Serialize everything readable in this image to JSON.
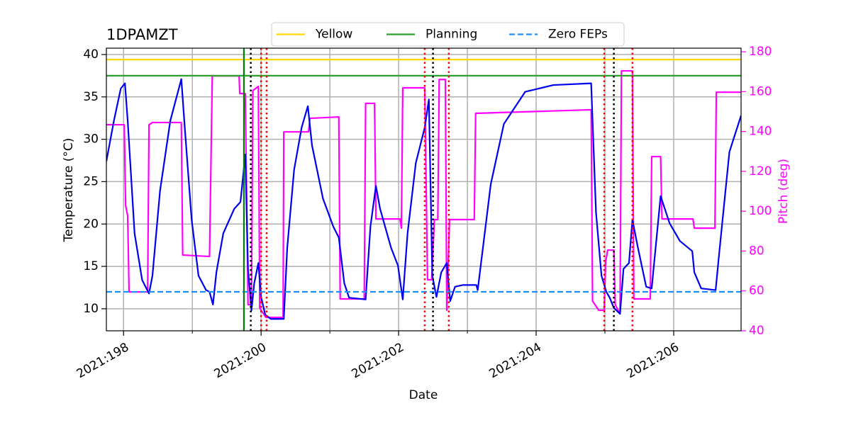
{
  "chart_data": {
    "type": "line",
    "title": "1DPAMZT",
    "xlabel": "Date",
    "ylabel": "Temperature (°C)",
    "y2label": "Pitch (deg)",
    "xlim": [
      197.75,
      206.98
    ],
    "xticks": [
      {
        "value": 198,
        "label": "2021:198"
      },
      {
        "value": 200,
        "label": "2021:200"
      },
      {
        "value": 202,
        "label": "2021:202"
      },
      {
        "value": 204,
        "label": "2021:204"
      },
      {
        "value": 206,
        "label": "2021:206"
      }
    ],
    "xminor_ticks": [
      199,
      201,
      203,
      205
    ],
    "ylim": [
      7.4,
      40.75
    ],
    "yticks": [
      10,
      15,
      20,
      25,
      30,
      35,
      40
    ],
    "y2lim": [
      40,
      181.8
    ],
    "y2ticks": [
      40,
      60,
      80,
      100,
      120,
      140,
      160,
      180
    ],
    "y2color": "#ff00ff",
    "grid": true,
    "legend": "top",
    "hlines": [
      {
        "name": "Yellow",
        "value": 39.4,
        "color": "#ffd700",
        "style": "solid"
      },
      {
        "name": "Planning",
        "value": 37.5,
        "color": "#2ca02c",
        "style": "solid"
      },
      {
        "name": "Zero FEPs",
        "value": 12.0,
        "color": "#1e90ff",
        "style": "dashed"
      }
    ],
    "vlines": [
      {
        "x": 199.75,
        "color": "#008000",
        "style": "solid"
      },
      {
        "x": 199.85,
        "color": "#000000",
        "style": "dotted"
      },
      {
        "x": 202.5,
        "color": "#000000",
        "style": "dotted"
      },
      {
        "x": 205.13,
        "color": "#000000",
        "style": "dotted"
      },
      {
        "x": 200.0,
        "color": "#ff0000",
        "style": "dotted"
      },
      {
        "x": 200.08,
        "color": "#ff0000",
        "style": "dotted"
      },
      {
        "x": 202.38,
        "color": "#ff0000",
        "style": "dotted"
      },
      {
        "x": 202.73,
        "color": "#ff0000",
        "style": "dotted"
      },
      {
        "x": 204.99,
        "color": "#ff0000",
        "style": "dotted"
      },
      {
        "x": 205.4,
        "color": "#ff0000",
        "style": "dotted"
      }
    ],
    "series": [
      {
        "color": "#ff00ff",
        "axis": "y2",
        "x": [
          197.75,
          198.01,
          198.03,
          198.06,
          198.08,
          198.35,
          198.37,
          198.42,
          198.84,
          198.86,
          199.25,
          199.27,
          199.29,
          199.68,
          199.69,
          199.77,
          199.81,
          199.86,
          199.88,
          199.96,
          199.98,
          200.07,
          200.32,
          200.33,
          200.69,
          200.71,
          201.13,
          201.15,
          201.5,
          201.52,
          201.65,
          201.67,
          202.02,
          202.04,
          202.06,
          202.38,
          202.42,
          202.48,
          202.52,
          202.57,
          202.59,
          202.68,
          202.7,
          202.74,
          203.1,
          203.12,
          204.8,
          204.82,
          204.91,
          204.99,
          205.01,
          205.04,
          205.13,
          205.15,
          205.22,
          205.24,
          205.4,
          205.42,
          205.66,
          205.68,
          205.81,
          205.83,
          206.28,
          206.3,
          206.6,
          206.62,
          206.98
        ],
        "values": [
          143.4,
          143.4,
          102.9,
          97.6,
          59.5,
          59.5,
          143.4,
          144.5,
          144.5,
          78.0,
          77.3,
          122.4,
          167.9,
          167.9,
          159.0,
          159.0,
          53.1,
          53.1,
          160.5,
          162.6,
          51.4,
          46.7,
          46.7,
          139.8,
          139.8,
          146.6,
          147.3,
          56.0,
          56.0,
          154.1,
          154.1,
          96.1,
          96.1,
          91.5,
          161.9,
          161.9,
          65.6,
          65.6,
          95.8,
          95.8,
          166.1,
          166.1,
          50.3,
          95.8,
          95.8,
          149.1,
          150.9,
          54.9,
          50.3,
          50.3,
          74.5,
          80.5,
          80.5,
          53.1,
          48.5,
          170.4,
          170.4,
          56.0,
          56.0,
          127.4,
          127.4,
          96.1,
          96.1,
          91.5,
          91.5,
          159.7,
          159.7
        ]
      },
      {
        "color": "#0000ee",
        "axis": "y",
        "x": [
          197.75,
          197.86,
          197.96,
          198.02,
          198.06,
          198.16,
          198.27,
          198.37,
          198.42,
          198.53,
          198.68,
          198.84,
          198.89,
          198.99,
          199.09,
          199.2,
          199.25,
          199.3,
          199.35,
          199.45,
          199.61,
          199.7,
          199.77,
          199.81,
          199.86,
          199.9,
          199.96,
          200.0,
          200.06,
          200.14,
          200.33,
          200.38,
          200.48,
          200.59,
          200.68,
          200.74,
          200.9,
          201.05,
          201.13,
          201.21,
          201.28,
          201.52,
          201.59,
          201.67,
          201.73,
          201.89,
          201.99,
          202.06,
          202.13,
          202.25,
          202.38,
          202.44,
          202.49,
          202.55,
          202.62,
          202.7,
          202.75,
          202.82,
          202.93,
          203.13,
          203.15,
          203.34,
          203.53,
          203.84,
          204.25,
          204.8,
          204.87,
          204.95,
          205.02,
          205.07,
          205.13,
          205.22,
          205.27,
          205.35,
          205.4,
          205.48,
          205.6,
          205.68,
          205.81,
          205.94,
          206.09,
          206.27,
          206.3,
          206.4,
          206.61,
          206.66,
          206.81,
          206.98
        ],
        "values": [
          27.4,
          32.2,
          36.0,
          36.6,
          32.2,
          18.9,
          13.4,
          11.8,
          13.9,
          23.9,
          32.2,
          37.1,
          31.4,
          20.5,
          13.9,
          12.2,
          12.0,
          10.5,
          14.3,
          18.9,
          21.8,
          22.6,
          28.2,
          14.7,
          9.8,
          13.0,
          15.4,
          11.4,
          9.3,
          8.8,
          8.8,
          17.2,
          26.4,
          31.4,
          33.9,
          29.3,
          23.0,
          19.7,
          18.4,
          13.0,
          11.3,
          11.1,
          19.7,
          24.5,
          21.8,
          17.2,
          15.1,
          11.1,
          18.9,
          27.2,
          31.4,
          34.7,
          13.9,
          11.4,
          14.3,
          15.4,
          10.9,
          12.6,
          12.8,
          12.8,
          12.2,
          24.7,
          31.8,
          35.6,
          36.4,
          36.6,
          21.4,
          13.9,
          12.0,
          11.3,
          10.1,
          9.4,
          14.7,
          15.4,
          20.5,
          17.2,
          12.6,
          12.4,
          23.3,
          20.1,
          18.0,
          16.8,
          14.3,
          12.4,
          12.2,
          16.4,
          28.5,
          32.8
        ]
      }
    ]
  }
}
